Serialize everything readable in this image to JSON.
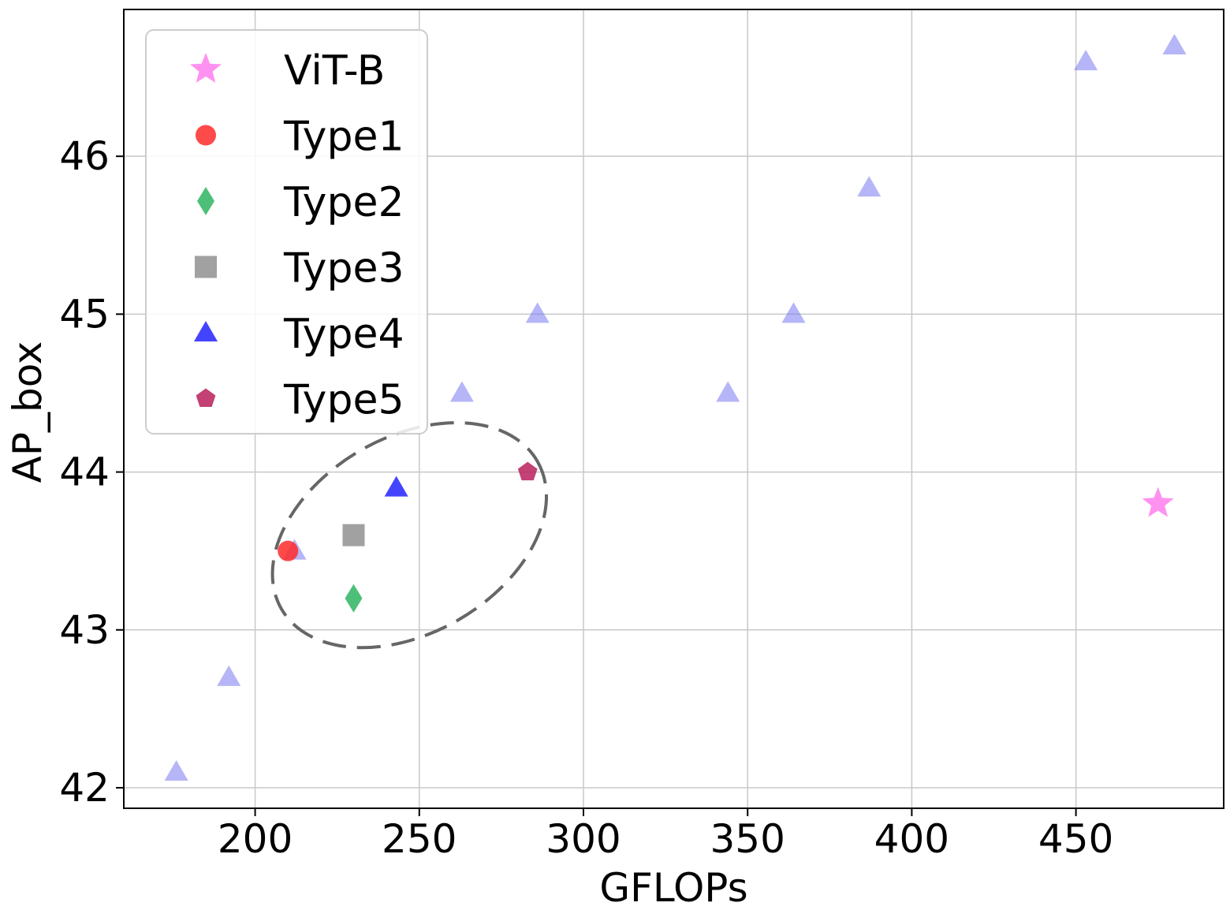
{
  "chart_data": {
    "type": "scatter",
    "title": "",
    "xlabel": "GFLOPs",
    "ylabel": "AP_box",
    "xlim": [
      160,
      495
    ],
    "ylim": [
      41.87,
      46.93
    ],
    "xticks": [
      200,
      250,
      300,
      350,
      400,
      450
    ],
    "yticks": [
      42,
      43,
      44,
      45,
      46
    ],
    "grid": true,
    "legend_position": "top-left",
    "series": [
      {
        "name": "ViT-B",
        "marker": "star",
        "color": "#ff77ee",
        "alpha": 0.8,
        "points": [
          {
            "x": 475,
            "y": 43.8
          }
        ]
      },
      {
        "name": "Type1",
        "marker": "circle",
        "color": "#ff2a2a",
        "alpha": 0.85,
        "points": [
          {
            "x": 210,
            "y": 43.5
          }
        ]
      },
      {
        "name": "Type2",
        "marker": "diamond",
        "color": "#2fb462",
        "alpha": 0.85,
        "points": [
          {
            "x": 230,
            "y": 43.2
          }
        ]
      },
      {
        "name": "Type3",
        "marker": "square",
        "color": "#8a8a8a",
        "alpha": 0.8,
        "points": [
          {
            "x": 230,
            "y": 43.6
          }
        ]
      },
      {
        "name": "Type4",
        "marker": "triangle",
        "color": "#2323ff",
        "alpha": 0.85,
        "points": [
          {
            "x": 243,
            "y": 43.9
          }
        ]
      },
      {
        "name": "Type5",
        "marker": "pentagon",
        "color": "#b8205c",
        "alpha": 0.85,
        "points": [
          {
            "x": 283,
            "y": 44.0
          }
        ]
      },
      {
        "name": "",
        "marker": "triangle",
        "color": "#6b6bef",
        "alpha": 0.5,
        "points": [
          {
            "x": 176,
            "y": 42.1
          },
          {
            "x": 192,
            "y": 42.7
          },
          {
            "x": 212,
            "y": 43.5
          },
          {
            "x": 263,
            "y": 44.5
          },
          {
            "x": 286,
            "y": 45.0
          },
          {
            "x": 344,
            "y": 44.5
          },
          {
            "x": 364,
            "y": 45.0
          },
          {
            "x": 387,
            "y": 45.8
          },
          {
            "x": 453,
            "y": 46.6
          },
          {
            "x": 480,
            "y": 46.7
          }
        ]
      }
    ],
    "annotations": [
      {
        "type": "dashed-ellipse",
        "center": {
          "x": 247,
          "y": 43.6
        },
        "rx_data": 45,
        "ry_data": 0.62,
        "rotation_deg": -30,
        "color": "#666666"
      }
    ]
  }
}
